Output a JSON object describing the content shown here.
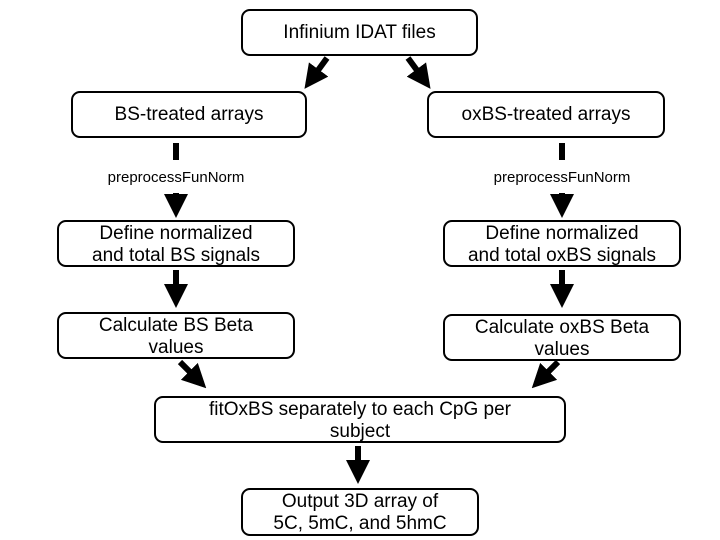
{
  "nodes": {
    "idat": {
      "text": "Infinium IDAT files"
    },
    "bs_arrays": {
      "text": "BS-treated arrays"
    },
    "oxbs_arrays": {
      "text": "oxBS-treated arrays"
    },
    "bs_define": {
      "line1": "Define normalized",
      "line2": "and total BS signals"
    },
    "oxbs_define": {
      "line1": "Define normalized",
      "line2": "and total oxBS signals"
    },
    "bs_beta": {
      "line1": "Calculate BS Beta",
      "line2": "values"
    },
    "oxbs_beta": {
      "line1": "Calculate oxBS Beta",
      "line2": "values"
    },
    "fit": {
      "line1": "fitOxBS separately to each CpG per",
      "line2": "subject"
    },
    "output": {
      "line1": "Output 3D array of",
      "line2": "5C, 5mC, and 5hmC"
    }
  },
  "edge_labels": {
    "left": "preprocessFunNorm",
    "right": "preprocessFunNorm"
  },
  "colors": {
    "stroke": "#000000",
    "fill": "#ffffff"
  }
}
